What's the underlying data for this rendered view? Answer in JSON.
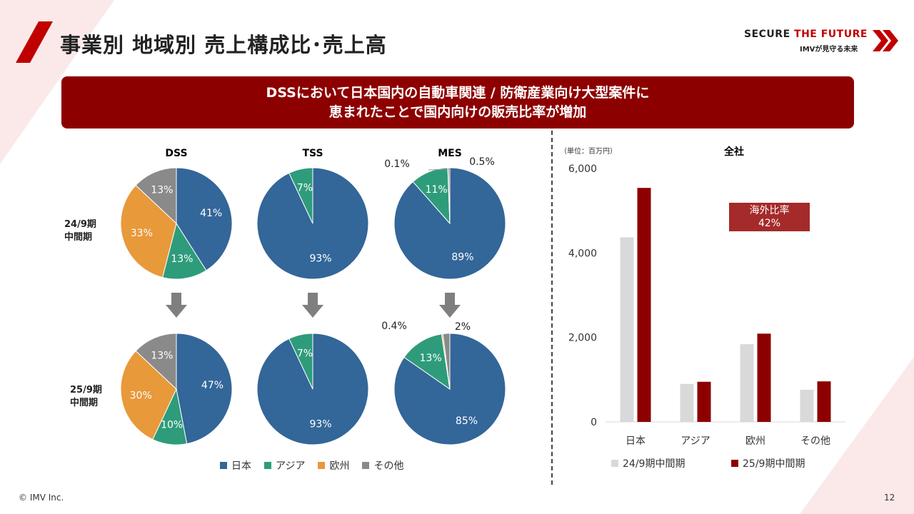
{
  "page": {
    "title": "事業別 地域別 売上構成比･売上高",
    "brand_line1_a": "SECURE ",
    "brand_line1_b": "THE FUTURE",
    "brand_line2": "IMVが見守る未来",
    "banner_line1": "DSSにおいて日本国内の自動車関連 / 防衛産業向け大型案件に",
    "banner_line2": "恵まれたことで国内向けの販売比率が増加",
    "footer": "© IMV Inc.",
    "page_number": "12"
  },
  "colors": {
    "japan": "#336699",
    "asia": "#2e9c7a",
    "europe": "#e8993a",
    "other": "#8a8a8a",
    "bar_prev": "#d9d9d9",
    "bar_curr": "#8d0000",
    "accent": "#c00000"
  },
  "icons": [
    "slash-accent-icon",
    "double-chevron-icon",
    "down-arrow-icon"
  ],
  "row_labels": [
    {
      "line1": "24/9期",
      "line2": "中間期"
    },
    {
      "line1": "25/9期",
      "line2": "中間期"
    }
  ],
  "chart_data": [
    {
      "type": "pie",
      "title": "DSS",
      "period": "24/9期中間期",
      "slices": [
        {
          "label": "日本",
          "value": 41,
          "text": "41%"
        },
        {
          "label": "アジア",
          "value": 13,
          "text": "13%"
        },
        {
          "label": "欧州",
          "value": 33,
          "text": "33%"
        },
        {
          "label": "その他",
          "value": 13,
          "text": "13%"
        }
      ]
    },
    {
      "type": "pie",
      "title": "TSS",
      "period": "24/9期中間期",
      "slices": [
        {
          "label": "日本",
          "value": 93,
          "text": "93%"
        },
        {
          "label": "アジア",
          "value": 7,
          "text": "7%"
        }
      ]
    },
    {
      "type": "pie",
      "title": "MES",
      "period": "24/9期中間期",
      "slices": [
        {
          "label": "日本",
          "value": 89,
          "text": "89%"
        },
        {
          "label": "アジア",
          "value": 11,
          "text": "11%"
        },
        {
          "label": "欧州",
          "value": 0.1,
          "text": "0.1%"
        },
        {
          "label": "その他",
          "value": 0.5,
          "text": "0.5%"
        }
      ]
    },
    {
      "type": "pie",
      "period": "25/9期中間期",
      "slices": [
        {
          "label": "日本",
          "value": 47,
          "text": "47%"
        },
        {
          "label": "アジア",
          "value": 10,
          "text": "10%"
        },
        {
          "label": "欧州",
          "value": 30,
          "text": "30%"
        },
        {
          "label": "その他",
          "value": 13,
          "text": "13%"
        }
      ]
    },
    {
      "type": "pie",
      "period": "25/9期中間期",
      "slices": [
        {
          "label": "日本",
          "value": 93,
          "text": "93%"
        },
        {
          "label": "アジア",
          "value": 7,
          "text": "7%"
        }
      ]
    },
    {
      "type": "pie",
      "period": "25/9期中間期",
      "slices": [
        {
          "label": "日本",
          "value": 85,
          "text": "85%"
        },
        {
          "label": "アジア",
          "value": 13,
          "text": "13%"
        },
        {
          "label": "欧州",
          "value": 0.4,
          "text": "0.4%"
        },
        {
          "label": "その他",
          "value": 2,
          "text": "2%"
        }
      ]
    },
    {
      "type": "bar",
      "title": "全社",
      "unit": "（単位：百万円）",
      "categories": [
        "日本",
        "アジア",
        "欧州",
        "その他"
      ],
      "series": [
        {
          "name": "24/9期中間期",
          "values": [
            4370,
            900,
            1840,
            760
          ]
        },
        {
          "name": "25/9期中間期",
          "values": [
            5540,
            950,
            2090,
            960
          ]
        }
      ],
      "ylim": [
        0,
        6000
      ],
      "yticks": [
        "0",
        "2,000",
        "4,000",
        "6,000"
      ],
      "grid": false,
      "legend": "bottom",
      "callout": {
        "line1": "海外比率",
        "line2": "42%"
      }
    }
  ],
  "pie_legend": [
    "日本",
    "アジア",
    "欧州",
    "その他"
  ]
}
